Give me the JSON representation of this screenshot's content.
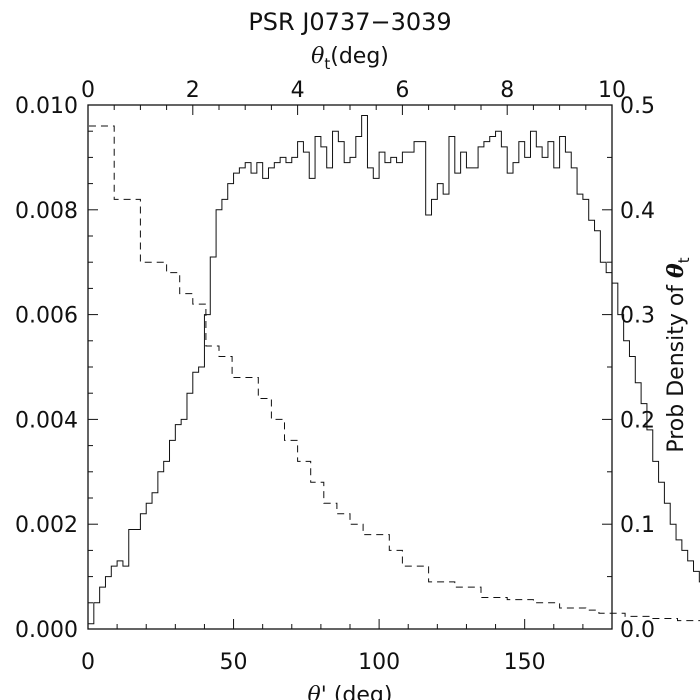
{
  "chart_data": {
    "type": "histogram",
    "title": "PSR J0737−3039",
    "x_bottom": {
      "label_symbol": "θ'",
      "label_unit": " (deg)",
      "range": [
        0,
        180
      ],
      "ticks": [
        0,
        50,
        100,
        150
      ],
      "tick_labels": [
        "0",
        "50",
        "100",
        "150"
      ]
    },
    "x_top": {
      "label_symbol": "θ",
      "label_sub": "t",
      "label_unit": "(deg)",
      "range": [
        0,
        10
      ],
      "ticks": [
        0,
        2,
        4,
        6,
        8,
        10
      ],
      "tick_labels": [
        "0",
        "2",
        "4",
        "6",
        "8",
        "10"
      ]
    },
    "y_left": {
      "range": [
        0,
        0.01
      ],
      "ticks": [
        0,
        0.002,
        0.004,
        0.006,
        0.008,
        0.01
      ],
      "tick_labels": [
        "0.000",
        "0.002",
        "0.004",
        "0.006",
        "0.008",
        "0.010"
      ]
    },
    "y_right": {
      "label_text": "Prob Density of ",
      "label_symbol": "θ",
      "label_sub": "t",
      "range": [
        0,
        0.5
      ],
      "ticks": [
        0,
        0.1,
        0.2,
        0.3,
        0.4,
        0.5
      ],
      "tick_labels": [
        "0.0",
        "0.1",
        "0.2",
        "0.3",
        "0.4",
        "0.5"
      ]
    },
    "grid": false,
    "series": [
      {
        "style": "solid",
        "axis_x": "bottom",
        "axis_y": "left",
        "bin_edges_start": 0,
        "bin_width": 2,
        "values": [
          0.0001,
          0.0005,
          0.0008,
          0.001,
          0.0012,
          0.0013,
          0.0012,
          0.0019,
          0.0019,
          0.0022,
          0.0024,
          0.0026,
          0.003,
          0.0032,
          0.0036,
          0.0039,
          0.004,
          0.0045,
          0.0049,
          0.005,
          0.006,
          0.0071,
          0.008,
          0.0082,
          0.0085,
          0.0087,
          0.0088,
          0.0089,
          0.0087,
          0.0089,
          0.0086,
          0.0088,
          0.0089,
          0.009,
          0.0089,
          0.009,
          0.0093,
          0.0091,
          0.0086,
          0.0094,
          0.0092,
          0.0088,
          0.0095,
          0.0093,
          0.0089,
          0.009,
          0.0094,
          0.0098,
          0.0088,
          0.0086,
          0.0091,
          0.0089,
          0.009,
          0.0089,
          0.0091,
          0.0091,
          0.0093,
          0.0093,
          0.0079,
          0.0082,
          0.0085,
          0.0083,
          0.0094,
          0.0087,
          0.0091,
          0.0088,
          0.0088,
          0.0092,
          0.0093,
          0.0094,
          0.0095,
          0.0092,
          0.0087,
          0.0089,
          0.0093,
          0.009,
          0.0095,
          0.0092,
          0.009,
          0.0093,
          0.0088,
          0.0094,
          0.0091,
          0.0088,
          0.0083,
          0.0082,
          0.0078,
          0.0076,
          0.007,
          0.0068,
          0.0066,
          0.006,
          0.0055,
          0.0052,
          0.0047,
          0.0043,
          0.0038,
          0.0032,
          0.0028,
          0.0024,
          0.002,
          0.0017,
          0.0015,
          0.0013,
          0.0011,
          0.0009,
          0.0007,
          0.0005,
          0.0003,
          0.0001
        ]
      },
      {
        "style": "dashed",
        "axis_x": "top",
        "axis_y": "right",
        "bin_edges_start": 0,
        "bin_width": 0.25,
        "values": [
          0.48,
          0.48,
          0.41,
          0.41,
          0.35,
          0.35,
          0.34,
          0.32,
          0.31,
          0.27,
          0.26,
          0.24,
          0.24,
          0.22,
          0.2,
          0.18,
          0.16,
          0.14,
          0.12,
          0.11,
          0.1,
          0.09,
          0.09,
          0.075,
          0.06,
          0.06,
          0.045,
          0.045,
          0.04,
          0.04,
          0.03,
          0.03,
          0.028,
          0.028,
          0.025,
          0.025,
          0.02,
          0.02,
          0.018,
          0.015,
          0.015,
          0.012,
          0.012,
          0.01,
          0.01,
          0.008,
          0.008,
          0.006,
          0.006,
          0.005,
          0.005,
          0.004,
          0.004,
          0.004,
          0.003,
          0.003,
          0.003,
          0.003,
          0.002,
          0.002,
          0.002,
          0.002,
          0.001,
          0.001,
          0.001,
          0.001,
          0.001,
          0.001,
          0.001,
          0.001,
          0.001,
          0.001,
          0.001,
          0.001,
          0.001,
          0.001,
          0.001,
          0.001,
          0.001,
          0.001
        ]
      }
    ]
  }
}
